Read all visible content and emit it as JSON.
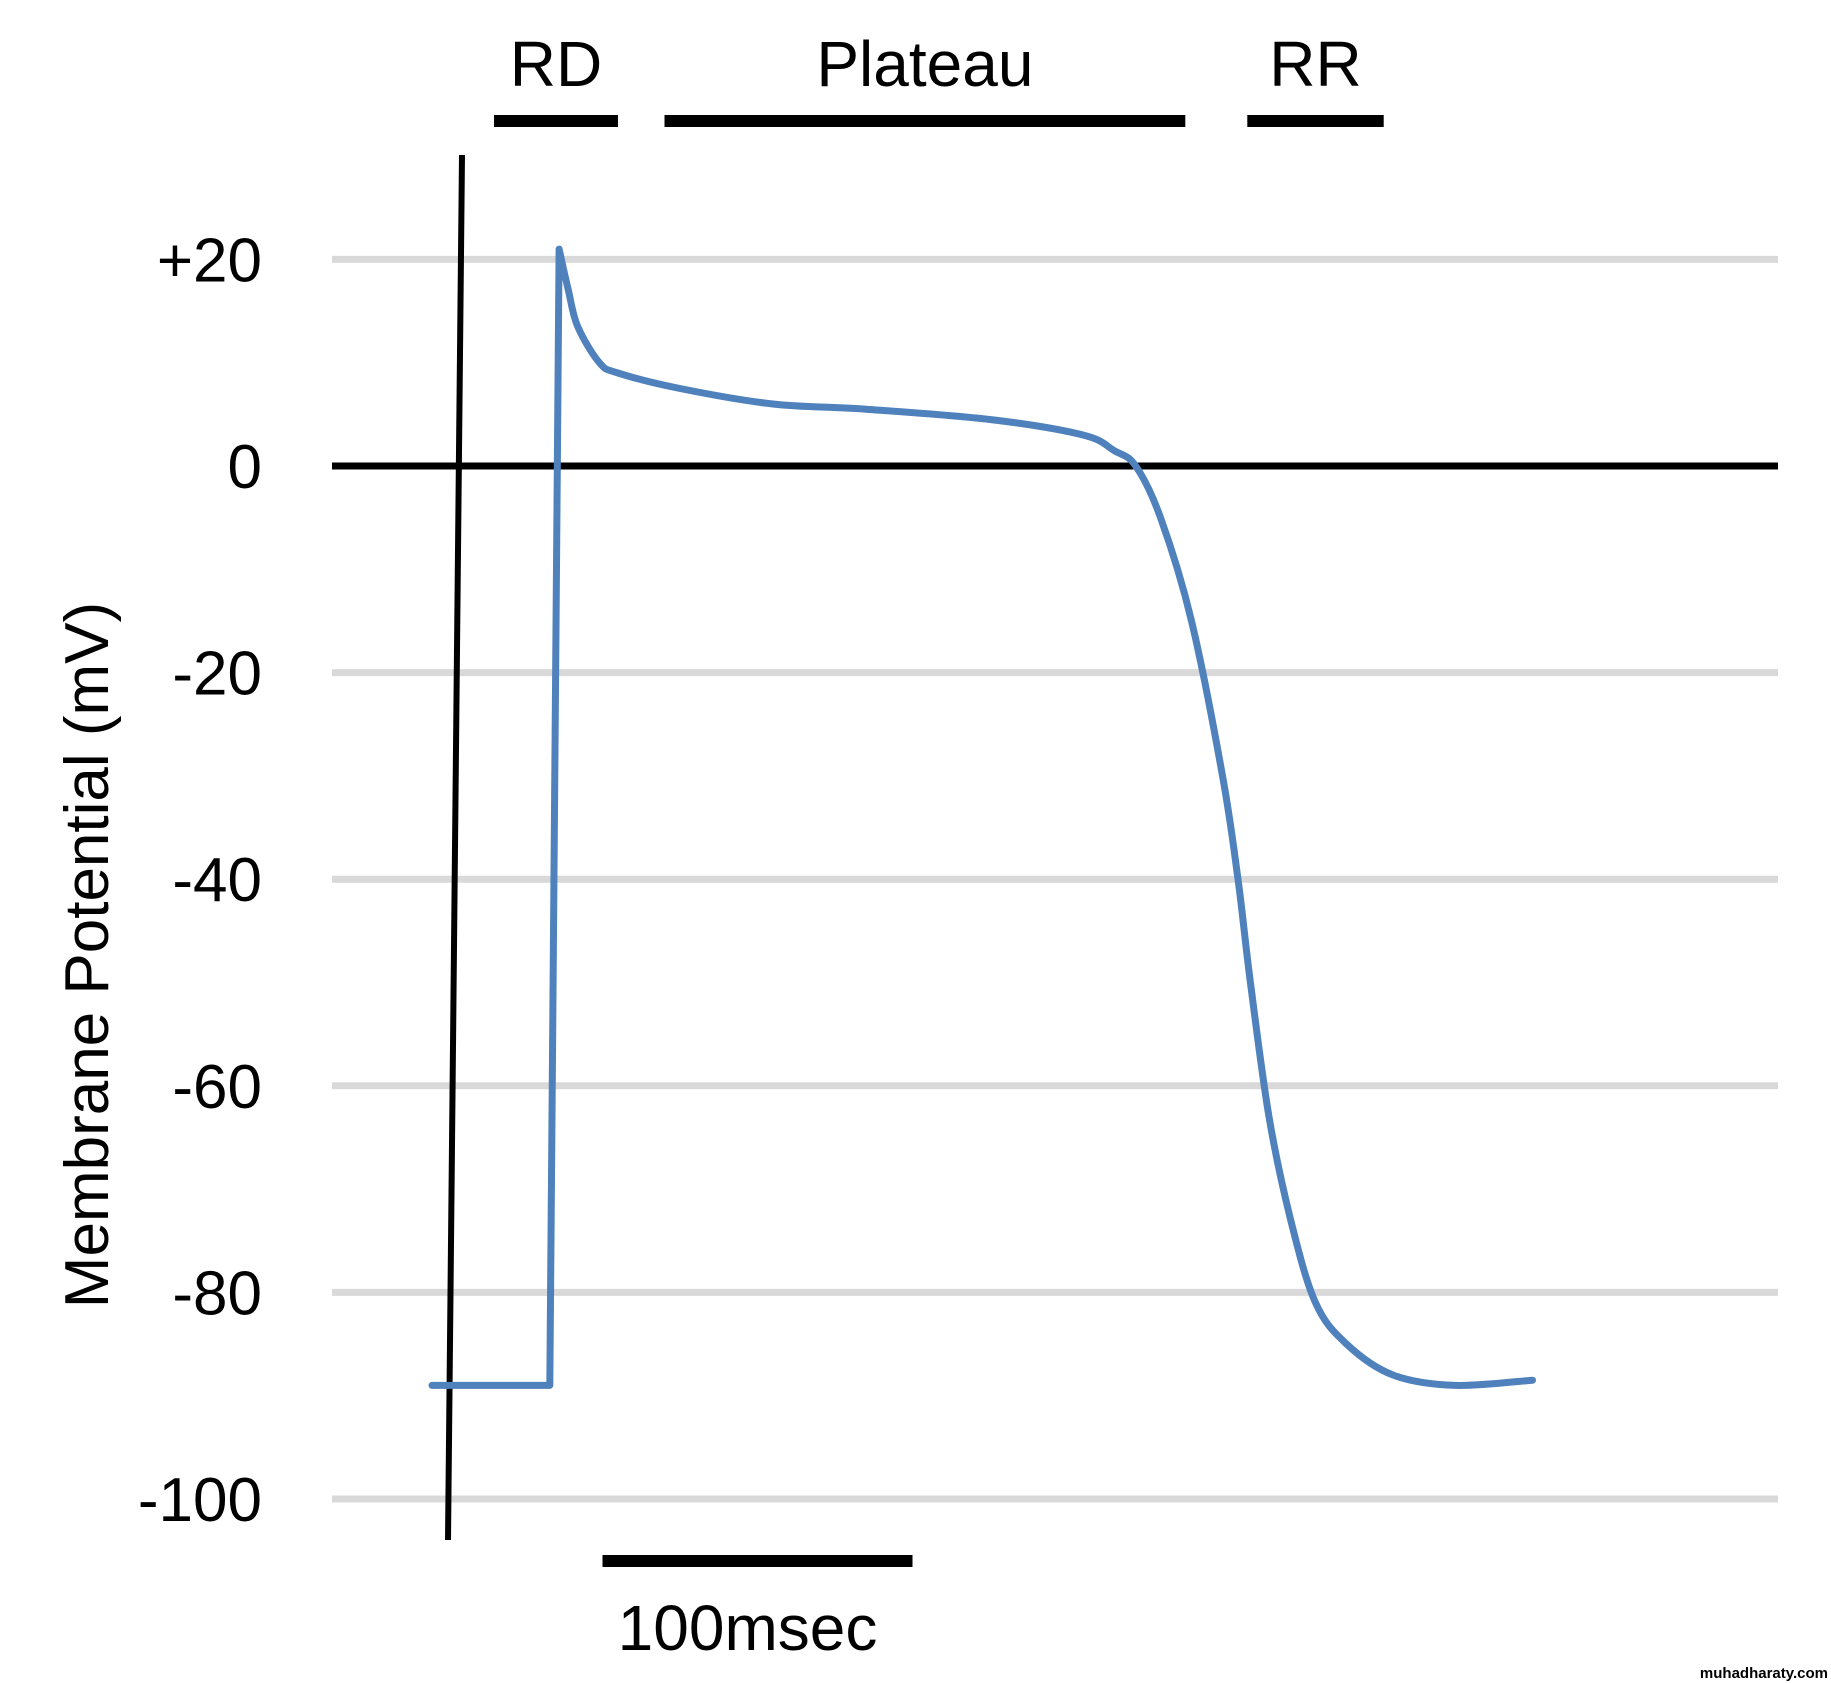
{
  "chart_data": {
    "type": "line",
    "title": "",
    "xlabel": "",
    "ylabel": "Membrane Potential (mV)",
    "ylim": [
      -100,
      20
    ],
    "yticks": [
      {
        "value": 20,
        "label": "+20"
      },
      {
        "value": 0,
        "label": "0"
      },
      {
        "value": -20,
        "label": "-20"
      },
      {
        "value": -40,
        "label": "-40"
      },
      {
        "value": -60,
        "label": "-60"
      },
      {
        "value": -80,
        "label": "-80"
      },
      {
        "value": -100,
        "label": "-100"
      }
    ],
    "grid": true,
    "units": {
      "x": "msec",
      "y": "mV"
    },
    "series": [
      {
        "color": "#4f81bd",
        "points": [
          [
            -60,
            -89
          ],
          [
            -22,
            -89
          ],
          [
            -19,
            21
          ],
          [
            -16,
            17
          ],
          [
            -13,
            13.5
          ],
          [
            -6,
            10
          ],
          [
            0,
            9
          ],
          [
            20,
            7.5
          ],
          [
            50,
            6
          ],
          [
            80,
            5.5
          ],
          [
            120,
            4.5
          ],
          [
            150,
            3
          ],
          [
            160,
            1.5
          ],
          [
            167,
            0
          ],
          [
            175,
            -5
          ],
          [
            185,
            -15
          ],
          [
            195,
            -30
          ],
          [
            200,
            -40
          ],
          [
            204,
            -50
          ],
          [
            210,
            -63
          ],
          [
            217,
            -73
          ],
          [
            225,
            -81
          ],
          [
            235,
            -85
          ],
          [
            250,
            -88
          ],
          [
            270,
            -89
          ],
          [
            295,
            -88.5
          ]
        ]
      }
    ],
    "phases": [
      {
        "label": "RD",
        "start": -40,
        "end": 0
      },
      {
        "label": "Plateau",
        "start": 15,
        "end": 183
      },
      {
        "label": "RR",
        "start": 203,
        "end": 247
      }
    ],
    "scale_bar": {
      "label": "100msec",
      "duration": 100
    }
  },
  "watermark": "muhadharaty.com"
}
